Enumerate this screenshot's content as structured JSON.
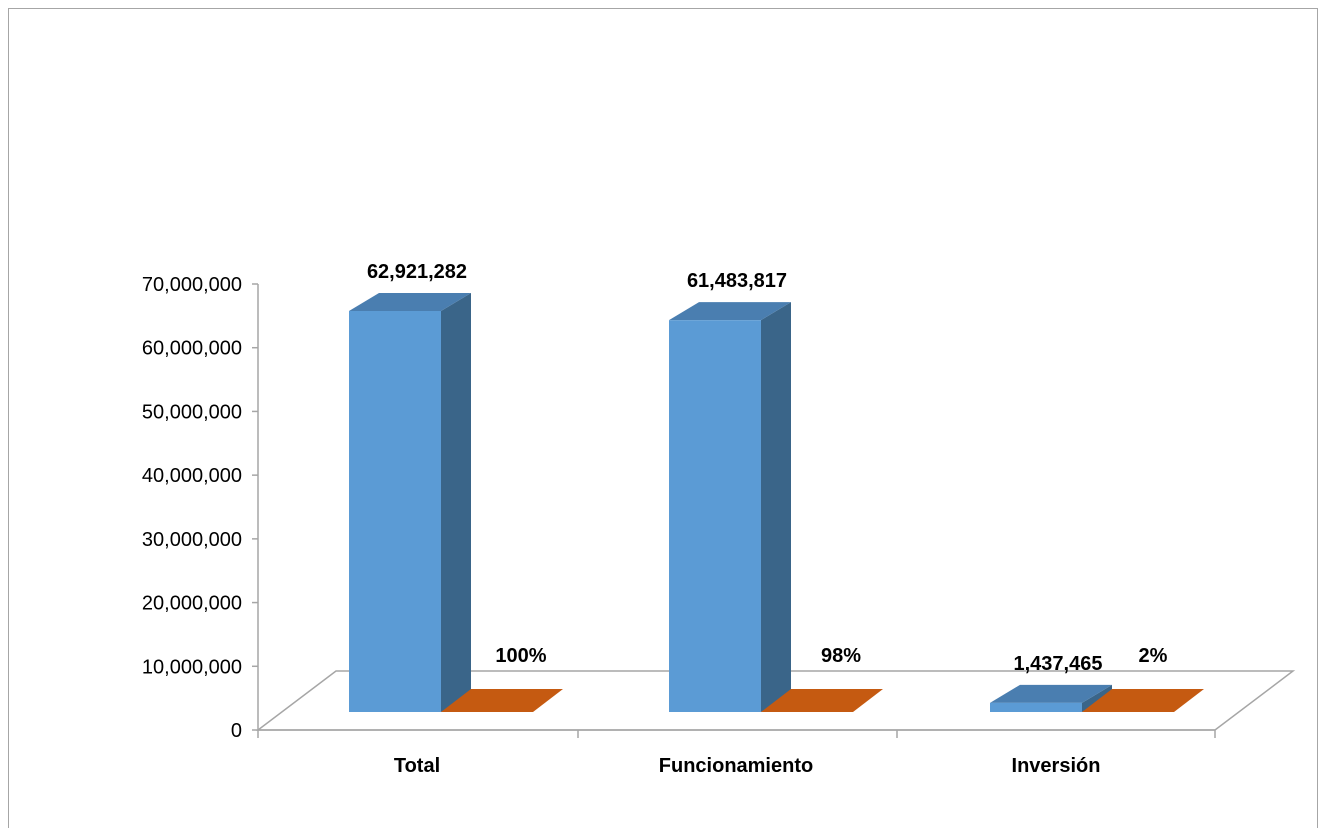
{
  "chart_data": {
    "type": "bar",
    "categories": [
      "Total",
      "Funcionamiento",
      "Inversión"
    ],
    "series": [
      {
        "values": [
          62921282,
          61483817,
          1437465
        ],
        "labels": [
          "62,921,282",
          "61,483,817",
          "1,437,465"
        ],
        "color": "#5b9bd5"
      },
      {
        "values": [
          100,
          98,
          2
        ],
        "labels": [
          "100%",
          "98%",
          "2%"
        ],
        "color": "#c55a11"
      }
    ],
    "yticks": [
      "0",
      "10,000,000",
      "20,000,000",
      "30,000,000",
      "40,000,000",
      "50,000,000",
      "60,000,000",
      "70,000,000"
    ],
    "ylim": [
      0,
      70000000
    ],
    "grid": false,
    "legend": "none",
    "title": "",
    "xlabel": "",
    "ylabel": ""
  }
}
